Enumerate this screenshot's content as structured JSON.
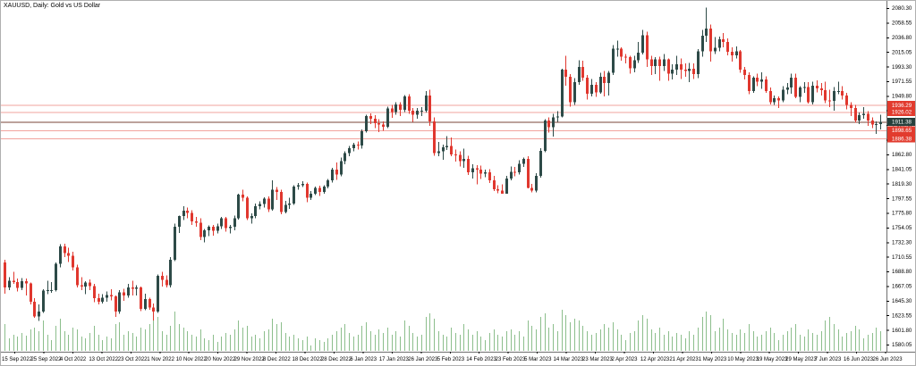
{
  "title": "XAUUSD, Daily:  Gold vs US Dollar",
  "symbol": "XAUUSD",
  "timeframe": "Daily",
  "description": "Gold vs US Dollar",
  "bid_price": "1911.38",
  "levels": [
    {
      "value": 1936.29,
      "label": "1936.29"
    },
    {
      "value": 1926.02,
      "label": "1926.02"
    },
    {
      "value": 1898.65,
      "label": "1898.65"
    },
    {
      "value": 1886.38,
      "label": "1886.38"
    }
  ],
  "colors": {
    "background": "#ffffff",
    "bull_candle": "#2d4a47",
    "bear_candle": "#e0372e",
    "volume_bar": "#8cbe8c",
    "level_line": "#f2a39d",
    "level_badge": "#e23b2e",
    "bid_line": "#7a453a",
    "bid_badge": "#26403c",
    "badge_text": "#ffffff",
    "axis_line": "#6e6e6e",
    "tick_text": "#000000"
  },
  "price_axis": {
    "ticks": [
      2080.3,
      2058.55,
      2036.8,
      2015.05,
      1993.3,
      1971.55,
      1949.8,
      1928.05,
      1906.3,
      1884.55,
      1862.8,
      1841.05,
      1819.3,
      1797.55,
      1775.8,
      1754.05,
      1732.3,
      1710.55,
      1688.8,
      1667.05,
      1645.3,
      1623.55,
      1601.8,
      1580.05
    ]
  },
  "date_axis": {
    "labels": [
      "15 Sep 2022",
      "25 Sep 2022",
      "4 Oct 2022",
      "13 Oct 2022",
      "23 Oct 2022",
      "1 Nov 2022",
      "10 Nov 2022",
      "20 Nov 2022",
      "29 Nov 2022",
      "8 Dec 2022",
      "18 Dec 2022",
      "28 Dec 2022",
      "6 Jan 2023",
      "17 Jan 2023",
      "26 Jan 2023",
      "5 Feb 2023",
      "14 Feb 2023",
      "23 Feb 2023",
      "5 Mar 2023",
      "14 Mar 2023",
      "23 Mar 2023",
      "2 Apr 2023",
      "12 Apr 2023",
      "21 Apr 2023",
      "1 May 2023",
      "10 May 2023",
      "19 May 2023",
      "29 May 2023",
      "7 Jun 2023",
      "16 Jun 2023",
      "26 Jun 2023"
    ]
  },
  "chart_data": {
    "type": "candlestick",
    "title": "XAUUSD Daily - Gold vs US Dollar",
    "ylim": [
      1580.05,
      2080.3
    ],
    "x_range": [
      "15 Sep 2022",
      "30 Jun 2023"
    ],
    "grid": false,
    "legend": false,
    "current_bid": 1911.38,
    "horizontal_levels": [
      1936.29,
      1926.02,
      1898.65,
      1886.38
    ],
    "candles_ohlc": [
      [
        1702,
        1706,
        1656,
        1665
      ],
      [
        1665,
        1680,
        1661,
        1675
      ],
      [
        1675,
        1688,
        1670,
        1673
      ],
      [
        1673,
        1678,
        1659,
        1664
      ],
      [
        1664,
        1679,
        1661,
        1674
      ],
      [
        1674,
        1678,
        1653,
        1671
      ],
      [
        1671,
        1672,
        1640,
        1644
      ],
      [
        1644,
        1649,
        1620,
        1622
      ],
      [
        1622,
        1640,
        1615,
        1629
      ],
      [
        1629,
        1662,
        1627,
        1660
      ],
      [
        1660,
        1675,
        1655,
        1661
      ],
      [
        1661,
        1673,
        1657,
        1661
      ],
      [
        1661,
        1702,
        1659,
        1700
      ],
      [
        1700,
        1729,
        1695,
        1726
      ],
      [
        1726,
        1730,
        1710,
        1716
      ],
      [
        1716,
        1724,
        1703,
        1712
      ],
      [
        1712,
        1718,
        1690,
        1695
      ],
      [
        1695,
        1699,
        1665,
        1668
      ],
      [
        1668,
        1680,
        1661,
        1666
      ],
      [
        1666,
        1674,
        1655,
        1672
      ],
      [
        1672,
        1677,
        1661,
        1667
      ],
      [
        1667,
        1670,
        1643,
        1649
      ],
      [
        1649,
        1656,
        1640,
        1644
      ],
      [
        1644,
        1655,
        1641,
        1650
      ],
      [
        1650,
        1659,
        1644,
        1654
      ],
      [
        1654,
        1662,
        1646,
        1652
      ],
      [
        1652,
        1653,
        1621,
        1629
      ],
      [
        1629,
        1661,
        1626,
        1658
      ],
      [
        1658,
        1663,
        1645,
        1653
      ],
      [
        1653,
        1670,
        1650,
        1665
      ],
      [
        1665,
        1675,
        1653,
        1663
      ],
      [
        1663,
        1668,
        1653,
        1665
      ],
      [
        1665,
        1666,
        1630,
        1633
      ],
      [
        1633,
        1656,
        1631,
        1648
      ],
      [
        1648,
        1650,
        1632,
        1635
      ],
      [
        1635,
        1641,
        1616,
        1629
      ],
      [
        1629,
        1684,
        1627,
        1682
      ],
      [
        1682,
        1688,
        1666,
        1676
      ],
      [
        1676,
        1683,
        1665,
        1668
      ],
      [
        1668,
        1710,
        1665,
        1706
      ],
      [
        1706,
        1760,
        1704,
        1755
      ],
      [
        1755,
        1772,
        1746,
        1771
      ],
      [
        1771,
        1786,
        1765,
        1779
      ],
      [
        1779,
        1784,
        1768,
        1776
      ],
      [
        1776,
        1780,
        1758,
        1763
      ],
      [
        1763,
        1770,
        1755,
        1761
      ],
      [
        1761,
        1768,
        1735,
        1740
      ],
      [
        1740,
        1752,
        1732,
        1750
      ],
      [
        1750,
        1757,
        1741,
        1755
      ],
      [
        1755,
        1758,
        1742,
        1749
      ],
      [
        1749,
        1760,
        1745,
        1756
      ],
      [
        1756,
        1770,
        1752,
        1768
      ],
      [
        1768,
        1770,
        1748,
        1753
      ],
      [
        1753,
        1758,
        1745,
        1755
      ],
      [
        1755,
        1772,
        1750,
        1768
      ],
      [
        1768,
        1804,
        1766,
        1803
      ],
      [
        1803,
        1810,
        1793,
        1798
      ],
      [
        1798,
        1800,
        1765,
        1768
      ],
      [
        1768,
        1775,
        1760,
        1771
      ],
      [
        1771,
        1790,
        1768,
        1786
      ],
      [
        1786,
        1793,
        1781,
        1789
      ],
      [
        1789,
        1799,
        1784,
        1797
      ],
      [
        1797,
        1800,
        1777,
        1781
      ],
      [
        1781,
        1824,
        1779,
        1810
      ],
      [
        1810,
        1814,
        1795,
        1807
      ],
      [
        1807,
        1810,
        1774,
        1777
      ],
      [
        1777,
        1794,
        1775,
        1788
      ],
      [
        1788,
        1798,
        1782,
        1790
      ],
      [
        1790,
        1817,
        1788,
        1815
      ],
      [
        1815,
        1820,
        1810,
        1817
      ],
      [
        1817,
        1823,
        1814,
        1819
      ],
      [
        1819,
        1821,
        1792,
        1798
      ],
      [
        1798,
        1808,
        1795,
        1804
      ],
      [
        1804,
        1815,
        1802,
        1813
      ],
      [
        1813,
        1816,
        1801,
        1807
      ],
      [
        1807,
        1817,
        1804,
        1815
      ],
      [
        1815,
        1826,
        1812,
        1824
      ],
      [
        1824,
        1843,
        1821,
        1840
      ],
      [
        1840,
        1851,
        1825,
        1833
      ],
      [
        1833,
        1858,
        1830,
        1853
      ],
      [
        1853,
        1867,
        1848,
        1865
      ],
      [
        1865,
        1875,
        1860,
        1872
      ],
      [
        1872,
        1880,
        1867,
        1877
      ],
      [
        1877,
        1882,
        1870,
        1876
      ],
      [
        1876,
        1900,
        1871,
        1897
      ],
      [
        1897,
        1922,
        1895,
        1920
      ],
      [
        1920,
        1924,
        1908,
        1916
      ],
      [
        1916,
        1921,
        1902,
        1909
      ],
      [
        1909,
        1915,
        1896,
        1907
      ],
      [
        1907,
        1912,
        1898,
        1904
      ],
      [
        1904,
        1934,
        1902,
        1931
      ],
      [
        1931,
        1936,
        1917,
        1926
      ],
      [
        1926,
        1940,
        1922,
        1937
      ],
      [
        1937,
        1940,
        1920,
        1929
      ],
      [
        1929,
        1951,
        1926,
        1949
      ],
      [
        1949,
        1952,
        1923,
        1928
      ],
      [
        1928,
        1932,
        1911,
        1922
      ],
      [
        1922,
        1932,
        1916,
        1928
      ],
      [
        1928,
        1933,
        1920,
        1928
      ],
      [
        1928,
        1957,
        1925,
        1950
      ],
      [
        1950,
        1959,
        1905,
        1912
      ],
      [
        1912,
        1918,
        1861,
        1865
      ],
      [
        1865,
        1881,
        1860,
        1867
      ],
      [
        1867,
        1877,
        1855,
        1873
      ],
      [
        1873,
        1890,
        1869,
        1875
      ],
      [
        1875,
        1888,
        1860,
        1863
      ],
      [
        1863,
        1870,
        1852,
        1862
      ],
      [
        1862,
        1867,
        1845,
        1853
      ],
      [
        1853,
        1871,
        1843,
        1856
      ],
      [
        1856,
        1861,
        1832,
        1836
      ],
      [
        1836,
        1848,
        1827,
        1842
      ],
      [
        1842,
        1847,
        1818,
        1840
      ],
      [
        1840,
        1846,
        1826,
        1834
      ],
      [
        1834,
        1840,
        1829,
        1836
      ],
      [
        1836,
        1841,
        1820,
        1824
      ],
      [
        1824,
        1831,
        1808,
        1811
      ],
      [
        1811,
        1817,
        1805,
        1809
      ],
      [
        1809,
        1818,
        1804,
        1804
      ],
      [
        1804,
        1831,
        1804,
        1827
      ],
      [
        1827,
        1845,
        1824,
        1837
      ],
      [
        1837,
        1844,
        1830,
        1836
      ],
      [
        1836,
        1854,
        1833,
        1849
      ],
      [
        1849,
        1858,
        1844,
        1856
      ],
      [
        1856,
        1860,
        1812,
        1813
      ],
      [
        1813,
        1819,
        1806,
        1809
      ],
      [
        1809,
        1835,
        1806,
        1831
      ],
      [
        1831,
        1872,
        1828,
        1868
      ],
      [
        1868,
        1915,
        1866,
        1913
      ],
      [
        1913,
        1918,
        1895,
        1903
      ],
      [
        1903,
        1923,
        1889,
        1918
      ],
      [
        1918,
        1927,
        1911,
        1919
      ],
      [
        1919,
        1990,
        1918,
        1989
      ],
      [
        1989,
        2009,
        1965,
        1978
      ],
      [
        1978,
        1982,
        1934,
        1940
      ],
      [
        1940,
        1976,
        1936,
        1970
      ],
      [
        1970,
        2003,
        1966,
        1993
      ],
      [
        1993,
        2002,
        1972,
        1977
      ],
      [
        1977,
        1981,
        1944,
        1953
      ],
      [
        1953,
        1975,
        1949,
        1966
      ],
      [
        1966,
        1970,
        1948,
        1955
      ],
      [
        1955,
        1984,
        1953,
        1978
      ],
      [
        1978,
        1987,
        1949,
        1969
      ],
      [
        1969,
        1987,
        1950,
        1984
      ],
      [
        1984,
        2025,
        1981,
        2020
      ],
      [
        2020,
        2032,
        2008,
        2020
      ],
      [
        2020,
        2022,
        2002,
        2008
      ],
      [
        2008,
        2012,
        1998,
        2007
      ],
      [
        2007,
        2009,
        1983,
        1991
      ],
      [
        1991,
        2009,
        1985,
        2003
      ],
      [
        2003,
        2030,
        1999,
        2014
      ],
      [
        2014,
        2048,
        2011,
        2040
      ],
      [
        2040,
        2045,
        1993,
        2004
      ],
      [
        2004,
        2009,
        1981,
        1994
      ],
      [
        1994,
        2007,
        1982,
        2004
      ],
      [
        2004,
        2008,
        1972,
        1994
      ],
      [
        1994,
        2012,
        1987,
        2004
      ],
      [
        2004,
        2005,
        1972,
        1983
      ],
      [
        1983,
        1997,
        1974,
        1989
      ],
      [
        1989,
        2009,
        1981,
        1997
      ],
      [
        1997,
        2005,
        1975,
        1989
      ],
      [
        1989,
        1998,
        1978,
        1987
      ],
      [
        1987,
        1999,
        1970,
        1990
      ],
      [
        1990,
        1998,
        1975,
        1982
      ],
      [
        1982,
        2019,
        1976,
        2016
      ],
      [
        2016,
        2048,
        2008,
        2039
      ],
      [
        2039,
        2081,
        2030,
        2050
      ],
      [
        2050,
        2056,
        2001,
        2016
      ],
      [
        2016,
        2037,
        2012,
        2021
      ],
      [
        2021,
        2038,
        2016,
        2034
      ],
      [
        2034,
        2043,
        2022,
        2030
      ],
      [
        2030,
        2035,
        2010,
        2015
      ],
      [
        2015,
        2022,
        2001,
        2010
      ],
      [
        2010,
        2023,
        2005,
        2016
      ],
      [
        2016,
        2018,
        1984,
        1989
      ],
      [
        1989,
        1993,
        1974,
        1981
      ],
      [
        1981,
        1985,
        1952,
        1957
      ],
      [
        1957,
        1979,
        1954,
        1977
      ],
      [
        1977,
        1983,
        1964,
        1971
      ],
      [
        1971,
        1985,
        1960,
        1974
      ],
      [
        1974,
        1979,
        1954,
        1957
      ],
      [
        1957,
        1962,
        1937,
        1940
      ],
      [
        1940,
        1950,
        1936,
        1946
      ],
      [
        1946,
        1949,
        1932,
        1943
      ],
      [
        1943,
        1964,
        1940,
        1959
      ],
      [
        1959,
        1969,
        1952,
        1962
      ],
      [
        1962,
        1983,
        1953,
        1977
      ],
      [
        1977,
        1983,
        1946,
        1948
      ],
      [
        1948,
        1964,
        1940,
        1962
      ],
      [
        1962,
        1970,
        1954,
        1963
      ],
      [
        1963,
        1970,
        1938,
        1940
      ],
      [
        1940,
        1971,
        1937,
        1965
      ],
      [
        1965,
        1973,
        1955,
        1961
      ],
      [
        1961,
        1969,
        1950,
        1958
      ],
      [
        1958,
        1971,
        1939,
        1943
      ],
      [
        1943,
        1959,
        1933,
        1942
      ],
      [
        1942,
        1963,
        1928,
        1957
      ],
      [
        1957,
        1971,
        1952,
        1957
      ],
      [
        1957,
        1964,
        1944,
        1950
      ],
      [
        1950,
        1954,
        1930,
        1936
      ],
      [
        1936,
        1940,
        1920,
        1932
      ],
      [
        1932,
        1936,
        1910,
        1913
      ],
      [
        1913,
        1925,
        1908,
        1921
      ],
      [
        1921,
        1933,
        1916,
        1923
      ],
      [
        1923,
        1927,
        1905,
        1913
      ],
      [
        1913,
        1918,
        1902,
        1907
      ],
      [
        1907,
        1912,
        1893,
        1908
      ],
      [
        1908,
        1922,
        1900,
        1911.4
      ]
    ],
    "volumes": [
      30,
      14,
      18,
      16,
      20,
      17,
      24,
      26,
      22,
      34,
      18,
      12,
      28,
      36,
      22,
      18,
      26,
      24,
      16,
      14,
      20,
      28,
      18,
      12,
      16,
      14,
      30,
      32,
      18,
      22,
      20,
      16,
      26,
      24,
      30,
      34,
      38,
      22,
      18,
      28,
      44,
      30,
      26,
      22,
      18,
      16,
      24,
      14,
      12,
      18,
      10,
      16,
      20,
      18,
      24,
      34,
      26,
      28,
      16,
      18,
      14,
      22,
      24,
      36,
      30,
      32,
      20,
      16,
      18,
      14,
      12,
      16,
      6,
      14,
      12,
      10,
      14,
      18,
      22,
      26,
      30,
      20,
      16,
      18,
      28,
      32,
      22,
      18,
      24,
      20,
      26,
      18,
      22,
      16,
      34,
      28,
      20,
      16,
      18,
      38,
      42,
      36,
      22,
      18,
      16,
      26,
      20,
      18,
      30,
      24,
      18,
      22,
      16,
      12,
      20,
      24,
      18,
      16,
      22,
      24,
      18,
      22,
      16,
      34,
      28,
      24,
      38,
      42,
      26,
      30,
      22,
      46,
      40,
      32,
      36,
      34,
      28,
      22,
      18,
      20,
      24,
      30,
      26,
      32,
      24,
      18,
      12,
      20,
      22,
      34,
      40,
      36,
      24,
      20,
      26,
      18,
      22,
      16,
      20,
      18,
      14,
      22,
      18,
      26,
      38,
      44,
      40,
      22,
      26,
      36,
      24,
      20,
      18,
      24,
      20,
      30,
      22,
      16,
      18,
      22,
      26,
      20,
      12,
      18,
      22,
      26,
      30,
      18,
      16,
      24,
      20,
      18,
      22,
      34,
      38,
      30,
      24,
      16,
      20,
      22,
      28,
      24,
      14,
      18,
      20,
      26,
      22
    ]
  }
}
